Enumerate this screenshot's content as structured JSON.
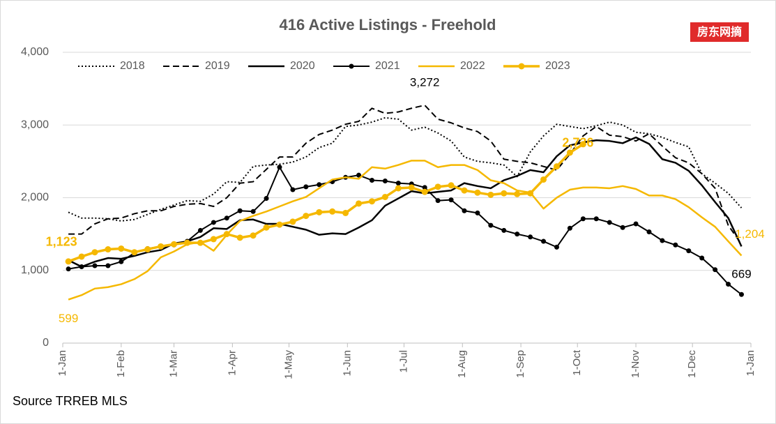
{
  "chart_data": {
    "type": "line",
    "title": "416 Active Listings - Freehold",
    "badge": "房东网摘",
    "source": "Source TRREB MLS",
    "x": [
      3,
      10,
      17,
      24,
      31,
      38,
      45,
      52,
      59,
      66,
      73,
      80,
      87,
      94,
      101,
      108,
      115,
      122,
      129,
      136,
      143,
      150,
      157,
      164,
      171,
      178,
      185,
      192,
      199,
      206,
      213,
      220,
      227,
      234,
      241,
      248,
      255,
      262,
      269,
      276,
      283,
      290,
      297,
      304,
      311,
      318,
      325,
      332,
      339,
      346,
      353,
      360
    ],
    "xlim": [
      0,
      365
    ],
    "xticks": [
      {
        "value": 0,
        "label": "1-Jan"
      },
      {
        "value": 31,
        "label": "1-Feb"
      },
      {
        "value": 59,
        "label": "1-Mar"
      },
      {
        "value": 90,
        "label": "1-Apr"
      },
      {
        "value": 120,
        "label": "1-May"
      },
      {
        "value": 151,
        "label": "1-Jun"
      },
      {
        "value": 181,
        "label": "1-Jul"
      },
      {
        "value": 212,
        "label": "1-Aug"
      },
      {
        "value": 243,
        "label": "1-Sep"
      },
      {
        "value": 273,
        "label": "1-Oct"
      },
      {
        "value": 304,
        "label": "1-Nov"
      },
      {
        "value": 334,
        "label": "1-Dec"
      },
      {
        "value": 365,
        "label": "1-Jan"
      }
    ],
    "ylim": [
      0,
      4000
    ],
    "yticks": [
      0,
      {
        "value": 1000,
        "label": "1,000"
      },
      {
        "value": 2000,
        "label": "2,000"
      },
      {
        "value": 3000,
        "label": "3,000"
      },
      {
        "value": 4000,
        "label": "4,000"
      }
    ],
    "grid": true,
    "legend": "top",
    "series": [
      {
        "name": "2018",
        "color": "#000000",
        "line_style": "dotted",
        "line_width": 2,
        "marker": false,
        "values": [
          1800,
          1720,
          1720,
          1710,
          1680,
          1700,
          1770,
          1840,
          1900,
          1960,
          1950,
          2050,
          2220,
          2210,
          2430,
          2450,
          2460,
          2490,
          2560,
          2690,
          2750,
          2980,
          3000,
          3040,
          3100,
          3080,
          2930,
          2970,
          2890,
          2780,
          2560,
          2500,
          2480,
          2450,
          2290,
          2630,
          2850,
          3010,
          2980,
          2950,
          2990,
          3040,
          3000,
          2900,
          2880,
          2830,
          2760,
          2700,
          2330,
          2200,
          2060,
          1860
        ]
      },
      {
        "name": "2019",
        "color": "#000000",
        "line_style": "dashed",
        "line_width": 2,
        "marker": false,
        "values": [
          1500,
          1500,
          1640,
          1710,
          1720,
          1780,
          1820,
          1820,
          1880,
          1910,
          1920,
          1880,
          2000,
          2200,
          2220,
          2390,
          2560,
          2560,
          2750,
          2870,
          2930,
          3010,
          3050,
          3230,
          3160,
          3180,
          3230,
          3272,
          3080,
          3030,
          2960,
          2910,
          2780,
          2530,
          2500,
          2480,
          2430,
          2380,
          2600,
          2850,
          2980,
          2860,
          2840,
          2780,
          2880,
          2710,
          2550,
          2480,
          2330,
          2130,
          1620,
          1360
        ],
        "value_labels": [
          null,
          null,
          null,
          null,
          null,
          null,
          null,
          null,
          null,
          null,
          null,
          null,
          null,
          null,
          null,
          null,
          null,
          null,
          null,
          null,
          null,
          null,
          null,
          null,
          null,
          null,
          null,
          "3,272",
          null,
          null,
          null,
          null,
          null,
          null,
          null,
          null,
          null,
          null,
          null,
          null,
          null,
          null,
          null,
          null,
          null,
          null,
          null,
          null,
          null,
          null,
          null,
          null
        ]
      },
      {
        "name": "2020",
        "color": "#000000",
        "line_style": "solid",
        "line_width": 2.5,
        "marker": false,
        "values": [
          1140,
          1050,
          1120,
          1170,
          1160,
          1200,
          1250,
          1280,
          1370,
          1400,
          1460,
          1580,
          1570,
          1690,
          1700,
          1640,
          1640,
          1600,
          1560,
          1490,
          1510,
          1500,
          1590,
          1690,
          1890,
          1990,
          2090,
          2060,
          2080,
          2100,
          2200,
          2160,
          2130,
          2240,
          2300,
          2380,
          2350,
          2570,
          2720,
          2760,
          2790,
          2780,
          2750,
          2830,
          2740,
          2530,
          2480,
          2370,
          2170,
          1940,
          1720,
          1330
        ]
      },
      {
        "name": "2021",
        "color": "#000000",
        "line_style": "solid",
        "line_width": 2,
        "marker": true,
        "values": [
          1020,
          1050,
          1065,
          1065,
          1120,
          1240,
          1300,
          1330,
          1350,
          1400,
          1550,
          1660,
          1720,
          1820,
          1810,
          1990,
          2420,
          2110,
          2150,
          2180,
          2220,
          2280,
          2310,
          2240,
          2230,
          2200,
          2190,
          2140,
          1960,
          1970,
          1820,
          1790,
          1620,
          1550,
          1500,
          1460,
          1400,
          1320,
          1580,
          1710,
          1710,
          1660,
          1590,
          1640,
          1530,
          1410,
          1350,
          1270,
          1170,
          1010,
          810,
          669
        ],
        "value_labels": [
          null,
          null,
          null,
          null,
          null,
          null,
          null,
          null,
          null,
          null,
          null,
          null,
          null,
          null,
          null,
          null,
          null,
          null,
          null,
          null,
          null,
          null,
          null,
          null,
          null,
          null,
          null,
          null,
          null,
          null,
          null,
          null,
          null,
          null,
          null,
          null,
          null,
          null,
          null,
          null,
          null,
          null,
          null,
          null,
          null,
          null,
          null,
          null,
          null,
          null,
          null,
          "669"
        ]
      },
      {
        "name": "2022",
        "color": "#f5b800",
        "line_style": "solid",
        "line_width": 2.5,
        "marker": false,
        "values": [
          599,
          660,
          750,
          770,
          810,
          880,
          990,
          1180,
          1260,
          1360,
          1390,
          1270,
          1490,
          1680,
          1750,
          1810,
          1880,
          1950,
          2010,
          2130,
          2250,
          2280,
          2260,
          2420,
          2400,
          2450,
          2510,
          2510,
          2420,
          2450,
          2450,
          2380,
          2240,
          2200,
          2100,
          2070,
          1850,
          2000,
          2110,
          2140,
          2140,
          2130,
          2160,
          2120,
          2030,
          2030,
          1980,
          1870,
          1730,
          1600,
          1400,
          1204
        ],
        "value_labels": [
          "599",
          null,
          null,
          null,
          null,
          null,
          null,
          null,
          null,
          null,
          null,
          null,
          null,
          null,
          null,
          null,
          null,
          null,
          null,
          null,
          null,
          null,
          null,
          null,
          null,
          null,
          null,
          null,
          null,
          null,
          null,
          null,
          null,
          null,
          null,
          null,
          null,
          null,
          null,
          null,
          null,
          null,
          null,
          null,
          null,
          null,
          null,
          null,
          null,
          null,
          null,
          "1,204"
        ]
      },
      {
        "name": "2023",
        "color": "#f5b800",
        "line_style": "solid",
        "line_width": 3.5,
        "marker": true,
        "values": [
          1123,
          1190,
          1250,
          1290,
          1300,
          1250,
          1290,
          1330,
          1360,
          1380,
          1380,
          1430,
          1500,
          1450,
          1480,
          1590,
          1630,
          1670,
          1750,
          1800,
          1810,
          1790,
          1920,
          1950,
          2010,
          2130,
          2140,
          2080,
          2150,
          2170,
          2100,
          2070,
          2040,
          2060,
          2050,
          2060,
          2250,
          2430,
          2620,
          2736,
          null,
          null,
          null,
          null,
          null,
          null,
          null,
          null,
          null,
          null,
          null,
          null
        ],
        "value_labels": [
          "1,123",
          null,
          null,
          null,
          null,
          null,
          null,
          null,
          null,
          null,
          null,
          null,
          null,
          null,
          null,
          null,
          null,
          null,
          null,
          null,
          null,
          null,
          null,
          null,
          null,
          null,
          null,
          null,
          null,
          null,
          null,
          null,
          null,
          null,
          null,
          null,
          null,
          null,
          null,
          "2,736",
          null,
          null,
          null,
          null,
          null,
          null,
          null,
          null,
          null,
          null,
          null,
          null
        ]
      }
    ]
  }
}
